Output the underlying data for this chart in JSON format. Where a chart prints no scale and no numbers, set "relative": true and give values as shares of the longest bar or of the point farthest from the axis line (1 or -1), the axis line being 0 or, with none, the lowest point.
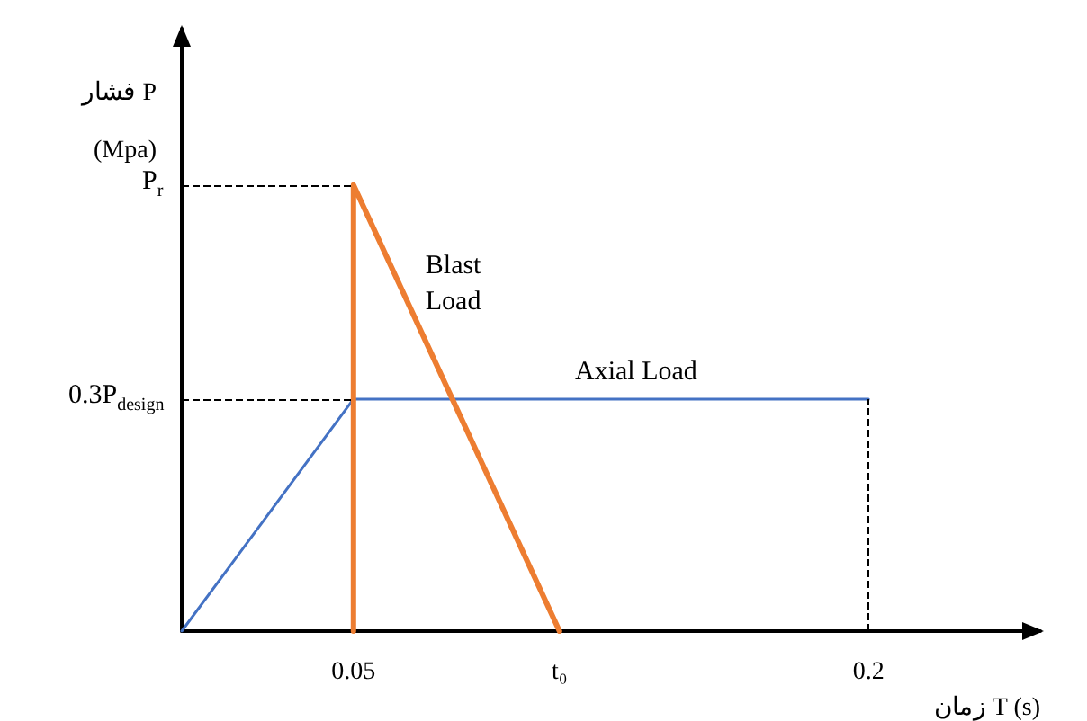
{
  "chart_data": {
    "type": "line",
    "relative": true,
    "xlabel": "زمان T (s)",
    "ylabel": "فشار P\n(Mpa)",
    "xlim": [
      0,
      0.25
    ],
    "xticks": [
      0.05,
      {
        "value": 0.11,
        "label": "t₀"
      },
      0.2
    ],
    "series": [
      {
        "name": "Axial Load",
        "color": "#4472c4",
        "x": [
          0,
          0.05,
          0.2
        ],
        "values": [
          0,
          0.52,
          0.52
        ]
      },
      {
        "name": "Blast Load",
        "color": "#ed7d31",
        "x": [
          0.05,
          0.05,
          0.11
        ],
        "values": [
          0,
          1,
          0
        ]
      }
    ],
    "ref_lines": [
      {
        "axis": "y",
        "value": 1,
        "label": "P$_{r}$",
        "line_style": "dashed"
      },
      {
        "axis": "y",
        "value": 0.52,
        "label": "0.3P$_{design}$",
        "line_style": "dashed"
      },
      {
        "axis": "x",
        "value": 0.2,
        "line_style": "dashed"
      }
    ],
    "grid": false,
    "legend": false,
    "marker": "none",
    "line_style": "solid"
  }
}
